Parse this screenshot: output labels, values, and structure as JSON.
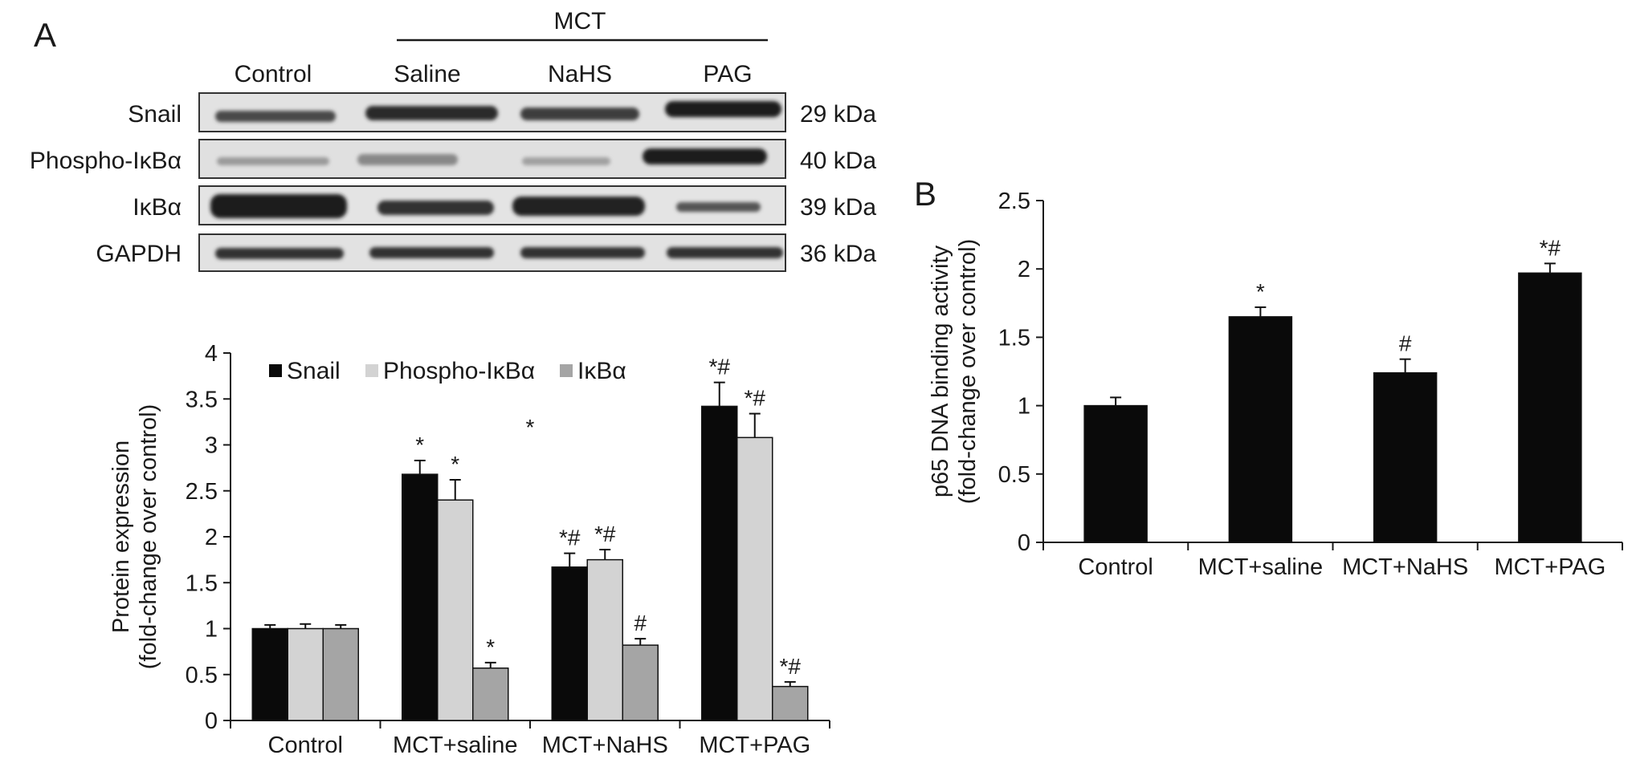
{
  "panel_a_label": "A",
  "panel_b_label": "B",
  "blot": {
    "group_label": "MCT",
    "lanes": [
      "Control",
      "Saline",
      "NaHS",
      "PAG"
    ],
    "rows": [
      {
        "name": "Snail",
        "size": "29 kDa"
      },
      {
        "name": "Phospho-IκBα",
        "size": "40 kDa"
      },
      {
        "name": "IκBα",
        "size": "39 kDa"
      },
      {
        "name": "GAPDH",
        "size": "36 kDa"
      }
    ]
  },
  "colors": {
    "snail": "#0a0a0a",
    "phospho": "#d3d3d3",
    "ikba": "#a5a5a5",
    "p65": "#0a0a0a",
    "axis": "#1a1a1a"
  },
  "chart_data": [
    {
      "type": "bar",
      "panel": "A",
      "ylabel": "Protein expression\n(fold-change over control)",
      "categories": [
        "Control",
        "MCT+saline",
        "MCT+NaHS",
        "MCT+PAG"
      ],
      "ylim": [
        0,
        4
      ],
      "yticks": [
        "0",
        "0.5",
        "1",
        "1.5",
        "2",
        "2.5",
        "3",
        "3.5",
        "4"
      ],
      "legend_position": "top",
      "stray_annotation": "*",
      "series": [
        {
          "name": "Snail",
          "values": [
            1.0,
            2.68,
            1.67,
            3.42
          ],
          "errors": [
            0.04,
            0.15,
            0.15,
            0.26
          ],
          "annotations": [
            "",
            "*",
            "*#",
            "*#"
          ]
        },
        {
          "name": "Phospho-IκBα",
          "values": [
            1.0,
            2.4,
            1.75,
            3.08
          ],
          "errors": [
            0.05,
            0.22,
            0.11,
            0.26
          ],
          "annotations": [
            "",
            "*",
            "*#",
            "*#"
          ]
        },
        {
          "name": "IκBα",
          "values": [
            1.0,
            0.57,
            0.82,
            0.37
          ],
          "errors": [
            0.04,
            0.06,
            0.07,
            0.05
          ],
          "annotations": [
            "",
            "*",
            "#",
            "*#"
          ]
        }
      ]
    },
    {
      "type": "bar",
      "panel": "B",
      "ylabel": "p65 DNA binding activity\n(fold-change over control)",
      "categories": [
        "Control",
        "MCT+saline",
        "MCT+NaHS",
        "MCT+PAG"
      ],
      "ylim": [
        0,
        2.5
      ],
      "yticks": [
        "0",
        "0.5",
        "1",
        "1.5",
        "2",
        "2.5"
      ],
      "series": [
        {
          "values": [
            1.0,
            1.65,
            1.24,
            1.97
          ],
          "errors": [
            0.06,
            0.07,
            0.1,
            0.07
          ],
          "annotations": [
            "",
            "*",
            "#",
            "*#"
          ]
        }
      ]
    }
  ]
}
